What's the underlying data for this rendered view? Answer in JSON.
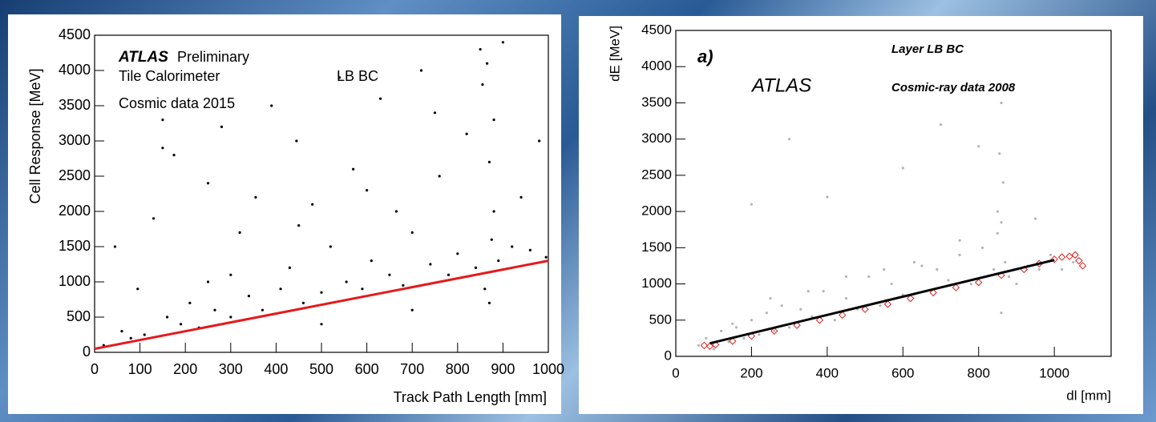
{
  "chart_data": [
    {
      "type": "scatter",
      "x_label": "Track Path Length [mm]",
      "y_label": "Cell Response [MeV]",
      "annotations": [
        "ATLAS",
        "Preliminary",
        "Tile Calorimeter",
        "LB BC",
        "Cosmic data 2015"
      ],
      "xlim": [
        0,
        1000
      ],
      "ylim": [
        0,
        4500
      ],
      "xticks": [
        0,
        100,
        200,
        300,
        400,
        500,
        600,
        700,
        800,
        900,
        1000
      ],
      "yticks": [
        0,
        500,
        1000,
        1500,
        2000,
        2500,
        3000,
        3500,
        4000,
        4500
      ],
      "series": [
        {
          "kind": "points",
          "color": "#000000",
          "x": [
            20,
            45,
            60,
            80,
            95,
            110,
            130,
            150,
            160,
            175,
            190,
            210,
            230,
            250,
            265,
            280,
            300,
            320,
            340,
            355,
            370,
            390,
            410,
            430,
            445,
            460,
            480,
            500,
            520,
            540,
            555,
            570,
            590,
            610,
            630,
            650,
            665,
            680,
            700,
            720,
            740,
            760,
            780,
            800,
            820,
            840,
            850,
            855,
            860,
            865,
            870,
            875,
            880,
            890,
            900,
            920,
            940,
            960,
            980,
            995,
            150,
            300,
            450,
            600,
            750,
            870,
            500,
            250,
            700,
            880
          ],
          "values": [
            100,
            1500,
            300,
            200,
            900,
            250,
            1900,
            3300,
            500,
            2800,
            400,
            700,
            350,
            2400,
            600,
            3200,
            500,
            1700,
            800,
            2200,
            600,
            3500,
            900,
            1200,
            3000,
            700,
            2100,
            850,
            1500,
            3900,
            1000,
            2600,
            900,
            1300,
            3600,
            1100,
            2000,
            950,
            1700,
            4000,
            1250,
            2500,
            1100,
            1400,
            3100,
            1200,
            4300,
            3800,
            900,
            4100,
            2700,
            1600,
            3300,
            1300,
            4400,
            1500,
            2200,
            1450,
            3000,
            1350,
            2900,
            1100,
            1800,
            2300,
            3400,
            700,
            400,
            1000,
            600,
            2000
          ]
        },
        {
          "kind": "line",
          "color": "#e41a1c",
          "x": [
            0,
            1000
          ],
          "values": [
            50,
            1300
          ]
        }
      ]
    },
    {
      "type": "scatter",
      "x_label": "dl [mm]",
      "y_label": "dE [MeV]",
      "annotations": [
        "a)",
        "Layer LB BC",
        "ATLAS",
        "Cosmic-ray data 2008"
      ],
      "xlim": [
        0,
        1150
      ],
      "ylim": [
        0,
        4500
      ],
      "xticks": [
        0,
        200,
        400,
        600,
        800,
        1000
      ],
      "yticks": [
        0,
        500,
        1000,
        1500,
        2000,
        2500,
        3000,
        3500,
        4000,
        4500
      ],
      "series": [
        {
          "kind": "points",
          "color": "#b4b4b4",
          "x": [
            60,
            80,
            100,
            120,
            140,
            160,
            180,
            200,
            220,
            240,
            260,
            280,
            300,
            330,
            360,
            390,
            420,
            450,
            480,
            510,
            540,
            570,
            600,
            630,
            660,
            690,
            720,
            750,
            780,
            810,
            840,
            850,
            855,
            860,
            860,
            865,
            870,
            880,
            900,
            930,
            960,
            990,
            1020,
            1050,
            150,
            250,
            350,
            450,
            550,
            650,
            750,
            850,
            950,
            200,
            400,
            600,
            800,
            860,
            300,
            700
          ],
          "values": [
            150,
            250,
            100,
            350,
            200,
            400,
            250,
            500,
            300,
            600,
            350,
            700,
            400,
            650,
            550,
            900,
            500,
            800,
            650,
            1100,
            700,
            1000,
            850,
            1300,
            900,
            1200,
            1050,
            1400,
            1000,
            1500,
            1200,
            2000,
            2800,
            3500,
            600,
            2400,
            1300,
            1100,
            1000,
            1250,
            1200,
            1400,
            1200,
            1300,
            450,
            800,
            900,
            1100,
            1200,
            1250,
            1600,
            1700,
            1900,
            2100,
            2200,
            2600,
            2900,
            1850,
            3000,
            3200
          ]
        },
        {
          "kind": "diamonds",
          "color": "#e02020",
          "x": [
            75,
            90,
            105,
            150,
            200,
            260,
            320,
            380,
            440,
            500,
            560,
            620,
            680,
            740,
            800,
            860,
            920,
            960,
            1000,
            1020,
            1040,
            1055,
            1065,
            1075
          ],
          "values": [
            150,
            140,
            160,
            210,
            280,
            350,
            430,
            500,
            570,
            650,
            720,
            800,
            880,
            950,
            1020,
            1120,
            1200,
            1280,
            1340,
            1370,
            1380,
            1400,
            1320,
            1250
          ]
        },
        {
          "kind": "line",
          "color": "#000000",
          "x": [
            90,
            1000
          ],
          "values": [
            180,
            1330
          ]
        }
      ]
    }
  ]
}
